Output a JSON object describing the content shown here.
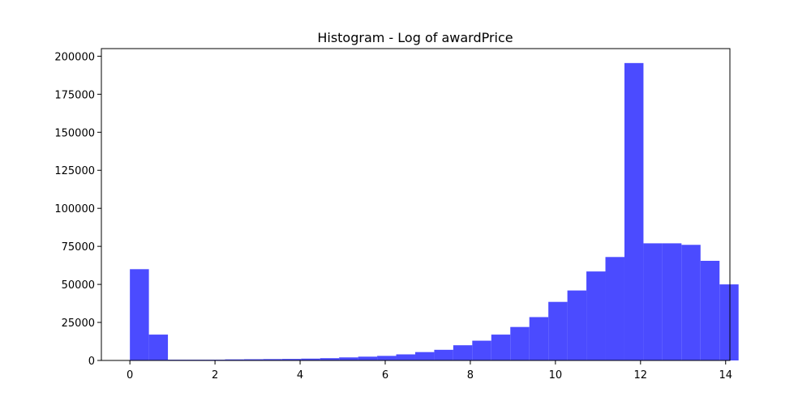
{
  "chart_data": {
    "type": "bar",
    "title": "Histogram - Log of awardPrice",
    "xlabel": "",
    "ylabel": "",
    "xlim": [
      -0.67,
      14.1
    ],
    "ylim": [
      0,
      205000
    ],
    "bin_width": 0.447,
    "bin_start": 0,
    "values": [
      60000,
      17000,
      500,
      500,
      500,
      700,
      800,
      900,
      1000,
      1200,
      1500,
      2000,
      2500,
      3000,
      4000,
      5500,
      7000,
      10000,
      13000,
      17000,
      22000,
      28500,
      38500,
      46000,
      58500,
      68000,
      195500,
      77000,
      77000,
      76000,
      65500,
      50000
    ],
    "color": "#4b4bff",
    "x_ticks": [
      0,
      2,
      4,
      6,
      8,
      10,
      12,
      14
    ],
    "x_tick_labels": [
      "0",
      "2",
      "4",
      "6",
      "8",
      "10",
      "12",
      "14"
    ],
    "y_ticks": [
      0,
      25000,
      50000,
      75000,
      100000,
      125000,
      150000,
      175000,
      200000
    ],
    "y_tick_labels": [
      "0",
      "25000",
      "50000",
      "75000",
      "100000",
      "125000",
      "150000",
      "175000",
      "200000"
    ],
    "grid": false,
    "legend": "none"
  }
}
